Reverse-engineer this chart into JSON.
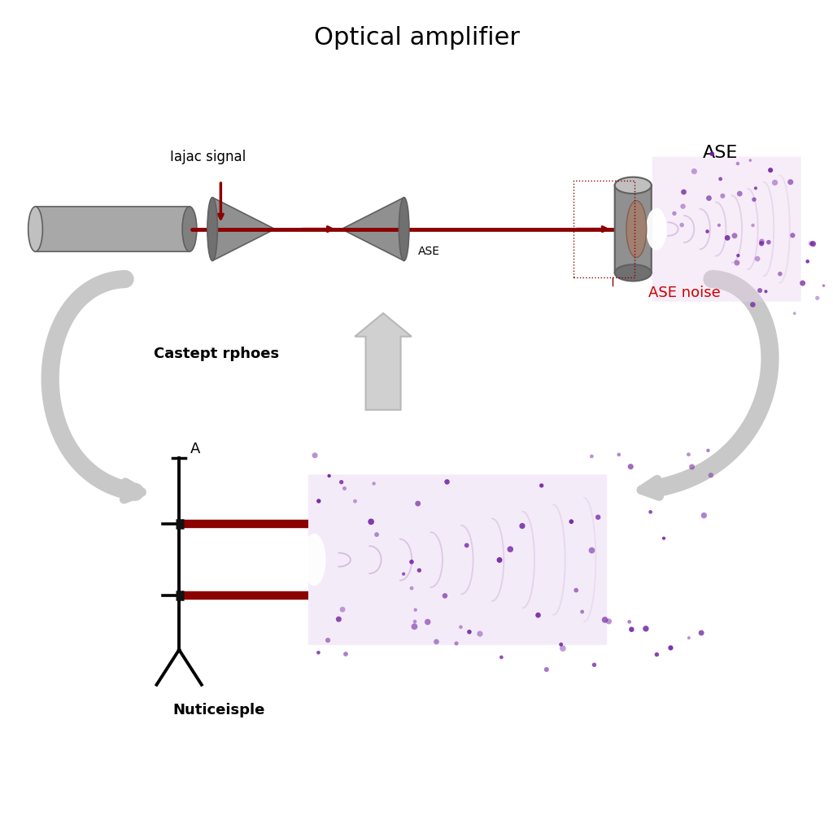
{
  "title": "Optical amplifier",
  "title_fontsize": 22,
  "bg_color": "#ffffff",
  "signal_label": "Iajac signal",
  "ase_label": "ASE",
  "ase_noise_label": "ASE noise",
  "castept_label": "Castept rphoes",
  "nuticeisple_label": "Nuticeisple",
  "a_label": "A",
  "red_color": "#8B0000",
  "text_color": "#000000",
  "red_text_color": "#CC0000",
  "gray_arrow": "#c8c8c8"
}
